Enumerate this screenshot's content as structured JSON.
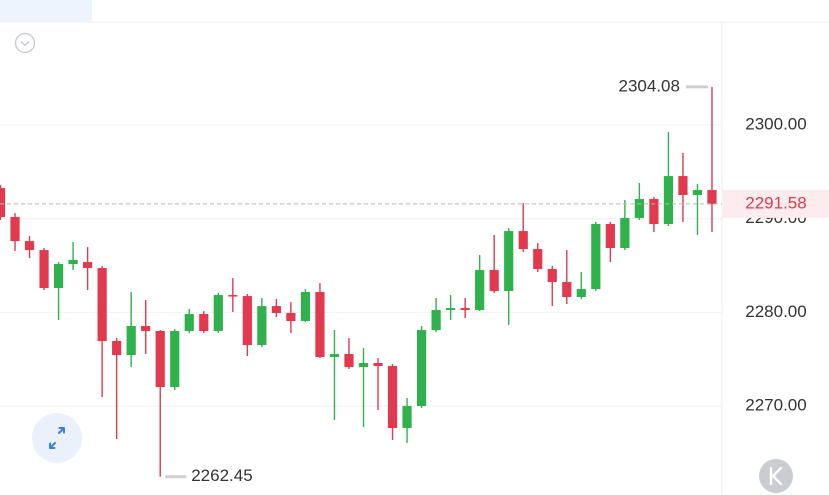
{
  "chart_data": {
    "type": "candlestick",
    "categories": [
      null,
      null,
      null,
      null,
      null,
      null,
      null,
      null,
      null,
      null,
      null,
      null,
      null,
      null,
      null,
      null,
      null,
      null,
      null,
      null,
      null,
      null,
      null,
      null,
      null,
      null,
      null,
      null,
      null,
      null,
      null,
      null,
      null,
      null,
      null,
      null,
      null,
      null,
      null,
      null,
      null,
      null,
      null,
      null,
      null,
      null,
      null,
      null,
      null,
      null
    ],
    "open": [
      2293.27,
      2290.18,
      2287.61,
      2286.65,
      2282.6,
      2285.16,
      2285.37,
      2284.73,
      2276.94,
      2275.44,
      2278.54,
      2278.01,
      2272.03,
      2278.01,
      2279.82,
      2278.01,
      2281.85,
      2281.74,
      2276.51,
      2280.67,
      2279.93,
      2279.07,
      2282.17,
      2275.23,
      2275.55,
      2274.16,
      2274.59,
      2274.27,
      2267.65,
      2270.0,
      2278.11,
      2280.25,
      2280.46,
      2280.25,
      2284.52,
      2282.28,
      2288.68,
      2286.76,
      2284.63,
      2283.24,
      2281.64,
      2282.49,
      2289.43,
      2286.87,
      2290.07,
      2292.1,
      2289.43,
      2294.55,
      2292.53,
      2293.06
    ],
    "high": [
      2293.59,
      2290.6,
      2288.15,
      2286.87,
      2285.37,
      2287.51,
      2286.97,
      2284.95,
      2277.26,
      2282.17,
      2281.32,
      2278.11,
      2278.22,
      2280.35,
      2280.14,
      2282.06,
      2283.66,
      2281.96,
      2281.53,
      2281.42,
      2281.1,
      2282.49,
      2283.13,
      2278.11,
      2277.26,
      2276.19,
      2275.12,
      2274.48,
      2270.85,
      2278.54,
      2281.53,
      2281.85,
      2281.53,
      2286.12,
      2288.26,
      2289.0,
      2291.67,
      2287.4,
      2284.95,
      2286.65,
      2284.3,
      2289.64,
      2289.64,
      2291.99,
      2293.81,
      2292.31,
      2299.25,
      2297.01,
      2293.7,
      2304.08
    ],
    "low": [
      2289.86,
      2286.55,
      2285.8,
      2282.38,
      2279.18,
      2284.52,
      2282.38,
      2270.96,
      2266.47,
      2274.16,
      2275.55,
      2262.45,
      2271.71,
      2277.79,
      2277.79,
      2277.79,
      2280.03,
      2275.34,
      2276.3,
      2279.5,
      2277.79,
      2278.97,
      2275.12,
      2268.5,
      2273.95,
      2267.76,
      2269.57,
      2266.37,
      2266.05,
      2269.78,
      2277.9,
      2279.18,
      2279.39,
      2280.14,
      2282.06,
      2278.65,
      2286.44,
      2284.3,
      2280.67,
      2280.89,
      2281.42,
      2282.28,
      2285.37,
      2286.65,
      2289.86,
      2288.58,
      2289.22,
      2289.64,
      2288.26,
      2288.58
    ],
    "close": [
      2290.18,
      2287.61,
      2286.65,
      2282.6,
      2285.16,
      2285.59,
      2284.73,
      2276.94,
      2275.44,
      2278.54,
      2278.01,
      2272.03,
      2278.01,
      2279.82,
      2278.01,
      2281.85,
      2281.74,
      2276.51,
      2280.67,
      2279.93,
      2279.07,
      2282.17,
      2275.23,
      2275.55,
      2274.16,
      2274.59,
      2274.27,
      2267.65,
      2270.0,
      2278.11,
      2280.25,
      2280.46,
      2280.25,
      2284.52,
      2282.28,
      2288.68,
      2286.76,
      2284.63,
      2283.24,
      2281.64,
      2282.49,
      2289.43,
      2286.87,
      2290.07,
      2292.1,
      2289.43,
      2294.55,
      2292.53,
      2293.06,
      2291.58
    ],
    "up_color": "#2fb14c",
    "down_color": "#e2394f",
    "ylim": [
      2260.5,
      2311
    ],
    "yticks": [
      {
        "value": 2270,
        "label": "2270.00"
      },
      {
        "value": 2280,
        "label": "2280.00"
      },
      {
        "value": 2290,
        "label": "2290.00"
      },
      {
        "value": 2300,
        "label": "2300.00"
      }
    ],
    "grid": true
  }
}
